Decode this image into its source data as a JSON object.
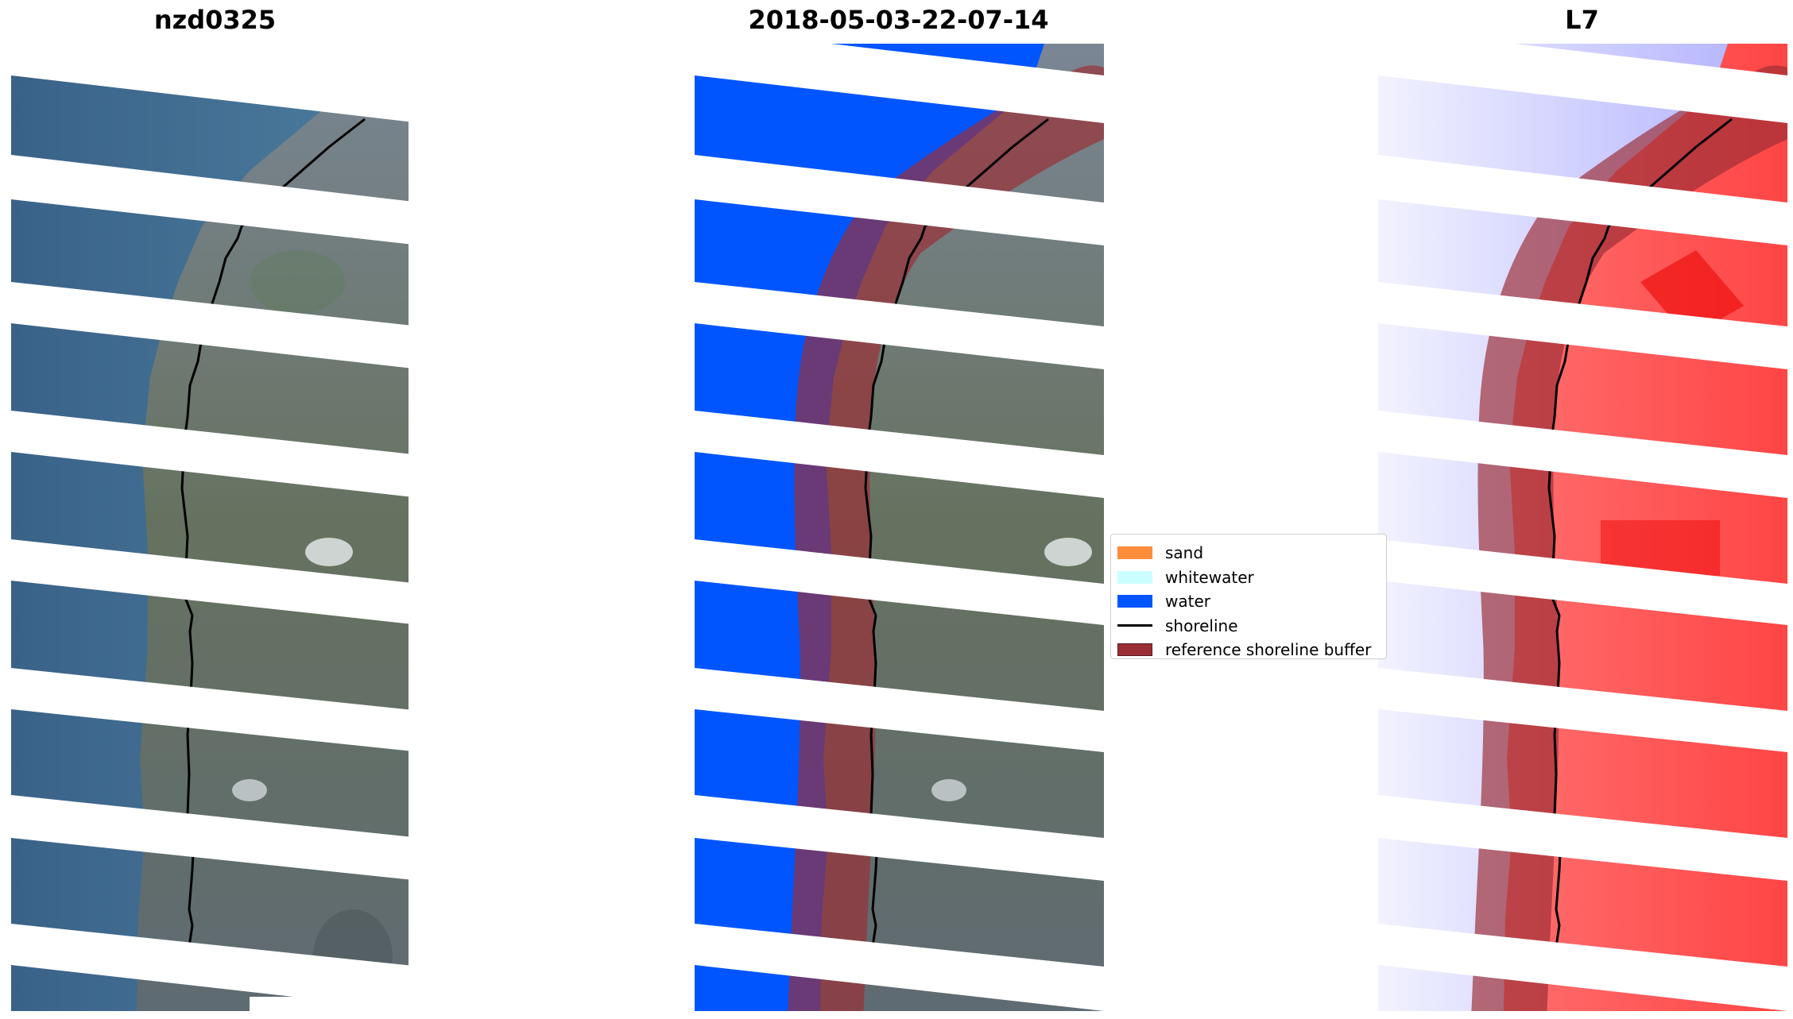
{
  "panels": {
    "left": {
      "title": "nzd0325"
    },
    "middle": {
      "title": "2018-05-03-22-07-14"
    },
    "right": {
      "title": "L7"
    }
  },
  "legend": {
    "items": [
      {
        "label": "sand",
        "kind": "patch",
        "color": "#ff8c3a"
      },
      {
        "label": "whitewater",
        "kind": "patch",
        "color": "#ccffff"
      },
      {
        "label": "water",
        "kind": "patch",
        "color": "#0055ff"
      },
      {
        "label": "shoreline",
        "kind": "line",
        "color": "#000000"
      },
      {
        "label": "reference shoreline buffer",
        "kind": "patch",
        "color": "#9b2d35"
      }
    ]
  },
  "colors": {
    "water_rgb": "#3f6b8e",
    "land_rgb": "#6e7a86",
    "classified_water": "#0055ff",
    "buffer": "#9b2d35",
    "index_water": "#8c8cff",
    "index_land": "#ff3c3c"
  }
}
